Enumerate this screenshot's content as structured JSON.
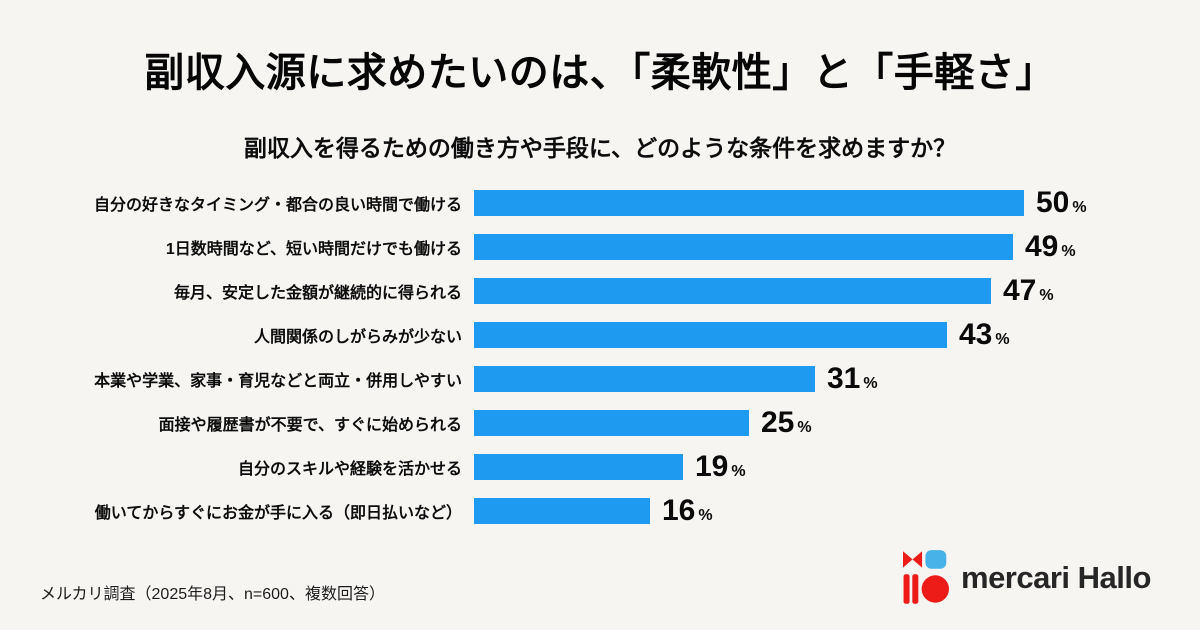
{
  "page": {
    "background_color": "#f6f5f2",
    "title": "副収入源に求めたいのは、「柔軟性」と「手軽さ」",
    "subtitle": "副収入を得るための働き方や手段に、どのような条件を求めますか？",
    "source_note": "メルカリ調査（2025年8月、n=600、複数回答）"
  },
  "logo": {
    "wordmark": "mercari Hallo",
    "mark_red": "#ee1c19",
    "mark_blue": "#45b2e8",
    "text_color": "#262626"
  },
  "chart_data": {
    "type": "bar",
    "orientation": "horizontal",
    "title": "副収入を得るための働き方や手段に、どのような条件を求めますか？",
    "unit": "%",
    "bar_color": "#1e9bf0",
    "xlim": [
      0,
      50
    ],
    "grid": false,
    "legend": false,
    "categories": [
      "自分の好きなタイミング・都合の良い時間で働ける",
      "1日数時間など、短い時間だけでも働ける",
      "毎月、安定した金額が継続的に得られる",
      "人間関係のしがらみが少ない",
      "本業や学業、家事・育児などと両立・併用しやすい",
      "面接や履歴書が不要で、すぐに始められる",
      "自分のスキルや経験を活かせる",
      "働いてからすぐにお金が手に入る（即日払いなど）"
    ],
    "values": [
      50,
      49,
      47,
      43,
      31,
      25,
      19,
      16
    ]
  }
}
